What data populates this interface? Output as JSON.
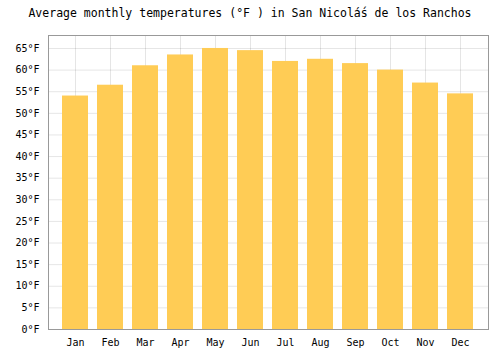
{
  "chart_data": {
    "type": "bar",
    "title": "Average monthly temperatures (°F ) in San Nicolá́s de los Ranchos",
    "categories": [
      "Jan",
      "Feb",
      "Mar",
      "Apr",
      "May",
      "Jun",
      "Jul",
      "Aug",
      "Sep",
      "Oct",
      "Nov",
      "Dec"
    ],
    "values": [
      54,
      56.5,
      61,
      63.5,
      65,
      64.5,
      62,
      62.5,
      61.5,
      60,
      57,
      54.5
    ],
    "color": "#FFCC55",
    "ylim": [
      0,
      68
    ],
    "yticks": [
      {
        "value": 0,
        "label": "0°F"
      },
      {
        "value": 5,
        "label": "5°F"
      },
      {
        "value": 10,
        "label": "10°F"
      },
      {
        "value": 15,
        "label": "15°F"
      },
      {
        "value": 20,
        "label": "20°F"
      },
      {
        "value": 25,
        "label": "25°F"
      },
      {
        "value": 30,
        "label": "30°F"
      },
      {
        "value": 35,
        "label": "35°F"
      },
      {
        "value": 40,
        "label": "40°F"
      },
      {
        "value": 45,
        "label": "45°F"
      },
      {
        "value": 50,
        "label": "50°F"
      },
      {
        "value": 55,
        "label": "55°F"
      },
      {
        "value": 60,
        "label": "60°F"
      },
      {
        "value": 65,
        "label": "65°F"
      }
    ],
    "grid": true
  }
}
